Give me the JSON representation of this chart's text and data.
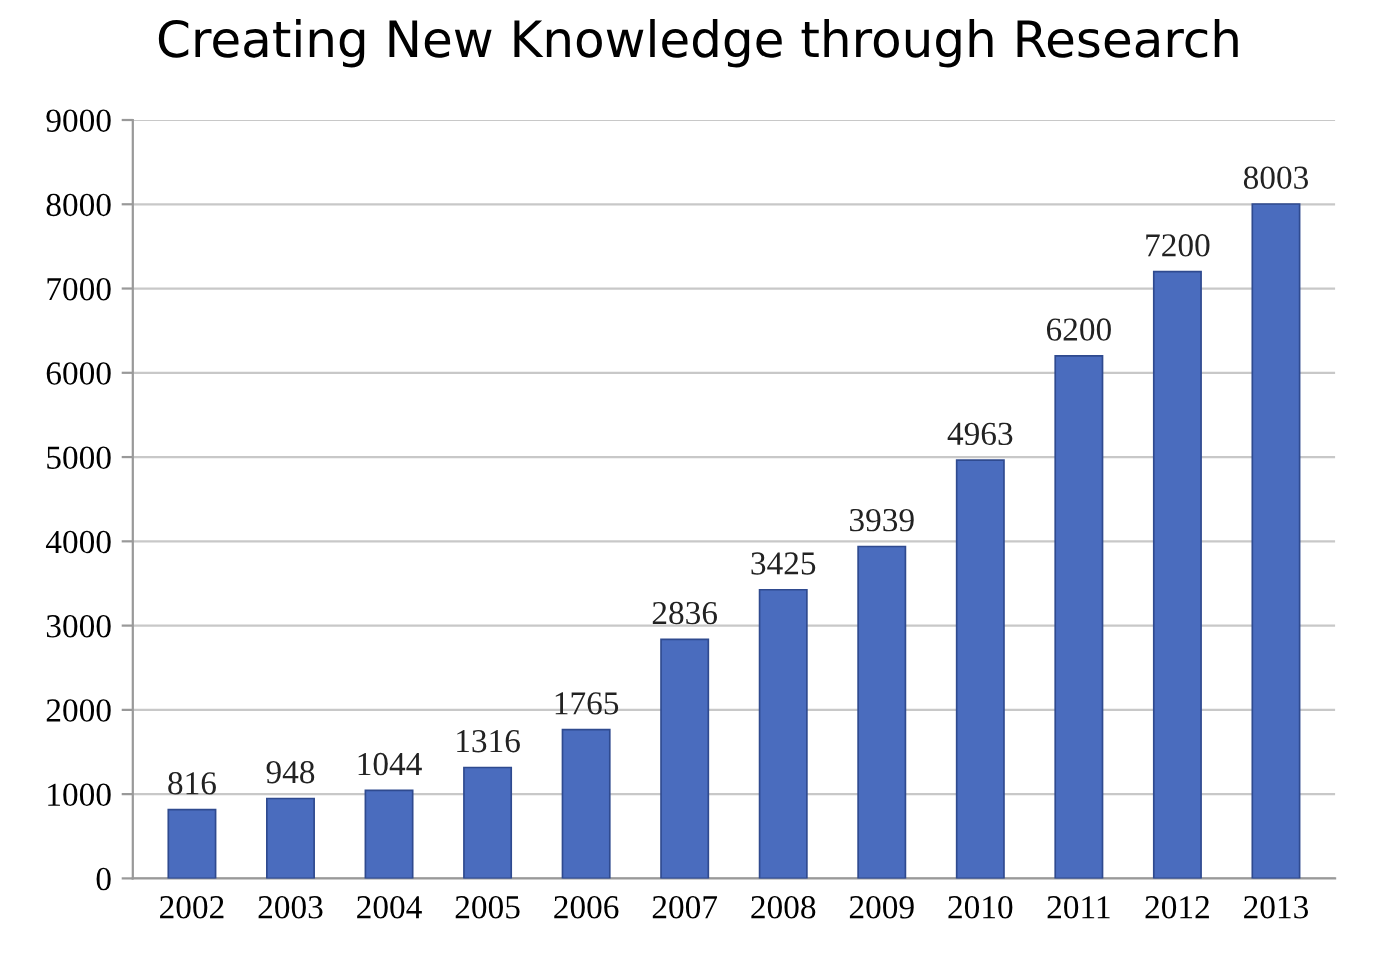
{
  "chart_data": {
    "type": "bar",
    "title": "Creating New Knowledge through Research",
    "categories": [
      "2002",
      "2003",
      "2004",
      "2005",
      "2006",
      "2007",
      "2008",
      "2009",
      "2010",
      "2011",
      "2012",
      "2013"
    ],
    "values": [
      816,
      948,
      1044,
      1316,
      1765,
      2836,
      3425,
      3939,
      4963,
      6200,
      7200,
      8003
    ],
    "color": "#4a6cbe",
    "ylim": [
      0,
      9000
    ],
    "yticks": [
      0,
      1000,
      2000,
      3000,
      4000,
      5000,
      6000,
      7000,
      8000,
      9000
    ],
    "grid": "y",
    "data_labels": true
  }
}
